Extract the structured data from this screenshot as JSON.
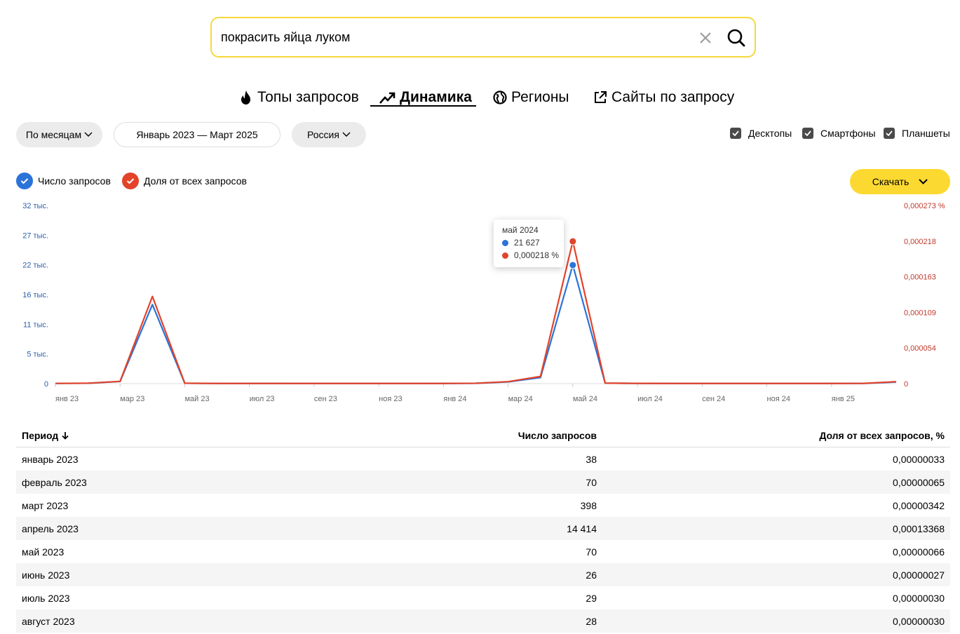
{
  "search": {
    "value": "покрасить яйца луком"
  },
  "tabs": [
    {
      "label": "Топы запросов",
      "icon": "fire-icon"
    },
    {
      "label": "Динамика",
      "icon": "trend-up-icon",
      "active": true
    },
    {
      "label": "Регионы",
      "icon": "globe-icon"
    },
    {
      "label": "Сайты по запросу",
      "icon": "external-link-icon"
    }
  ],
  "filters": {
    "period": "По месяцам",
    "range": "Январь 2023 — Март 2025",
    "region": "Россия"
  },
  "devices": [
    {
      "label": "Десктопы",
      "checked": true
    },
    {
      "label": "Смартфоны",
      "checked": true
    },
    {
      "label": "Планшеты",
      "checked": true
    }
  ],
  "legend": {
    "count_label": "Число запросов",
    "share_label": "Доля от всех запросов"
  },
  "download_label": "Скачать",
  "colors": {
    "count": "#2a73d9",
    "share": "#e2432a",
    "accent": "#fcd930"
  },
  "tooltip": {
    "title": "май 2024",
    "count": "21 627",
    "share": "0,000218 %"
  },
  "chart_data": {
    "type": "line",
    "x": [
      "янв 23",
      "фев 23",
      "мар 23",
      "апр 23",
      "май 23",
      "июн 23",
      "июл 23",
      "авг 23",
      "сен 23",
      "окт 23",
      "ноя 23",
      "дек 23",
      "янв 24",
      "фев 24",
      "мар 24",
      "апр 24",
      "май 24",
      "июн 24",
      "июл 24",
      "авг 24",
      "сен 24",
      "окт 24",
      "ноя 24",
      "дек 24",
      "янв 25",
      "фев 25",
      "мар 25"
    ],
    "x_tick_labels": [
      "янв 23",
      "мар 23",
      "май 23",
      "июл 23",
      "сен 23",
      "ноя 23",
      "янв 24",
      "мар 24",
      "май 24",
      "июл 24",
      "сен 24",
      "ноя 24",
      "янв 25"
    ],
    "y_left_ticks": [
      "0",
      "5 тыс.",
      "11 тыс.",
      "16 тыс.",
      "22 тыс.",
      "27 тыс.",
      "32 тыс."
    ],
    "y_right_ticks": [
      "0",
      "0,000054",
      "0,000109",
      "0,000163",
      "0,000218",
      "0,000273 %"
    ],
    "y_left_lim": [
      0,
      32500
    ],
    "y_right_lim": [
      0,
      0.000273
    ],
    "series": [
      {
        "name": "Число запросов",
        "axis": "left",
        "values": [
          38,
          70,
          398,
          14414,
          70,
          26,
          29,
          28,
          25,
          25,
          25,
          25,
          30,
          60,
          320,
          1100,
          21627,
          90,
          40,
          30,
          25,
          25,
          25,
          25,
          30,
          40,
          300
        ]
      },
      {
        "name": "Доля от всех запросов",
        "axis": "right",
        "values": [
          3.3e-07,
          6.5e-07,
          3.42e-06,
          0.00013368,
          6.6e-07,
          2.7e-07,
          3e-07,
          3e-07,
          2.7e-07,
          2.7e-07,
          2.7e-07,
          2.7e-07,
          3e-07,
          6e-07,
          3e-06,
          1.1e-05,
          0.000218,
          8e-07,
          4e-07,
          3e-07,
          3e-07,
          3e-07,
          3e-07,
          3e-07,
          3e-07,
          4e-07,
          3e-06
        ]
      }
    ],
    "grid": false
  },
  "table": {
    "headers": [
      "Период",
      "Число запросов",
      "Доля от всех запросов, %"
    ],
    "rows": [
      [
        "январь 2023",
        "38",
        "0,00000033"
      ],
      [
        "февраль 2023",
        "70",
        "0,00000065"
      ],
      [
        "март 2023",
        "398",
        "0,00000342"
      ],
      [
        "апрель 2023",
        "14 414",
        "0,00013368"
      ],
      [
        "май 2023",
        "70",
        "0,00000066"
      ],
      [
        "июнь 2023",
        "26",
        "0,00000027"
      ],
      [
        "июль 2023",
        "29",
        "0,00000030"
      ],
      [
        "август 2023",
        "28",
        "0,00000030"
      ]
    ]
  }
}
